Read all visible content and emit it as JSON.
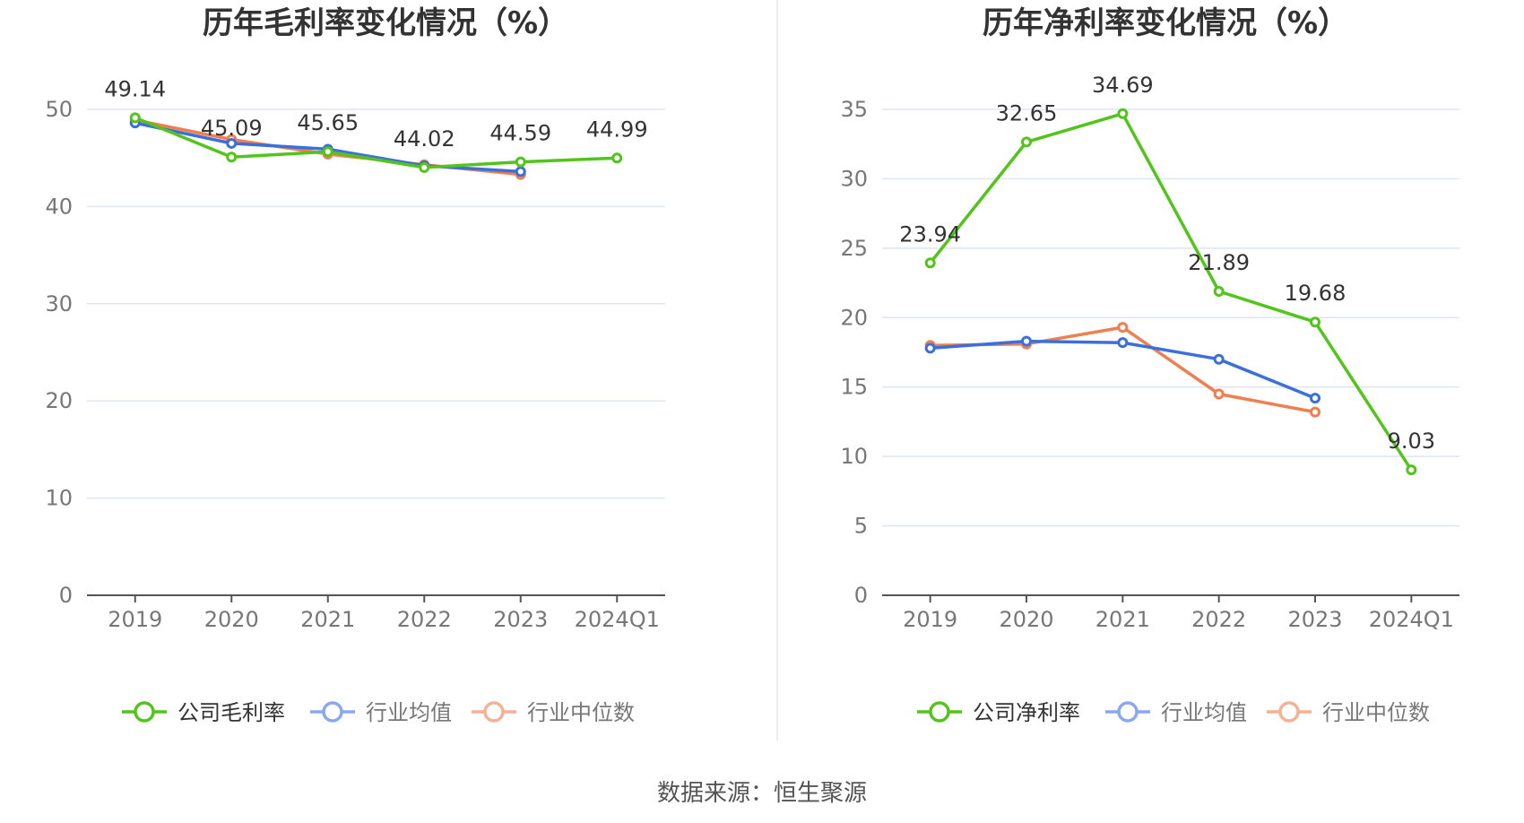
{
  "source_text": "数据来源：恒生聚源",
  "chart_data": [
    {
      "type": "line",
      "title": "历年毛利率变化情况（%）",
      "categories": [
        "2019",
        "2020",
        "2021",
        "2022",
        "2023",
        "2024Q1"
      ],
      "ylim": [
        0,
        50
      ],
      "yticks": [
        0,
        10,
        20,
        30,
        40,
        50
      ],
      "grid": true,
      "legend_position": "bottom",
      "series": [
        {
          "name": "公司毛利率",
          "color": "#52c41a",
          "values": [
            49.14,
            45.09,
            45.65,
            44.02,
            44.59,
            44.99
          ],
          "labels": [
            "49.14",
            "45.09",
            "45.65",
            "44.02",
            "44.59",
            "44.99"
          ]
        },
        {
          "name": "行业均值",
          "color": "#3b6fdc",
          "values": [
            48.6,
            46.5,
            45.9,
            44.2,
            43.6,
            null
          ]
        },
        {
          "name": "行业中位数",
          "color": "#f07f4f",
          "values": [
            48.9,
            46.9,
            45.4,
            44.3,
            43.3,
            null
          ]
        }
      ]
    },
    {
      "type": "line",
      "title": "历年净利率变化情况（%）",
      "categories": [
        "2019",
        "2020",
        "2021",
        "2022",
        "2023",
        "2024Q1"
      ],
      "ylim": [
        0,
        35
      ],
      "yticks": [
        0,
        5,
        10,
        15,
        20,
        25,
        30,
        35
      ],
      "grid": true,
      "legend_position": "bottom",
      "series": [
        {
          "name": "公司净利率",
          "color": "#52c41a",
          "values": [
            23.94,
            32.65,
            34.69,
            21.89,
            19.68,
            9.03
          ],
          "labels": [
            "23.94",
            "32.65",
            "34.69",
            "21.89",
            "19.68",
            "9.03"
          ]
        },
        {
          "name": "行业均值",
          "color": "#3b6fdc",
          "values": [
            17.8,
            18.3,
            18.2,
            17.0,
            14.2,
            null
          ]
        },
        {
          "name": "行业中位数",
          "color": "#f07f4f",
          "values": [
            18.0,
            18.1,
            19.3,
            14.5,
            13.2,
            null
          ]
        }
      ]
    }
  ]
}
